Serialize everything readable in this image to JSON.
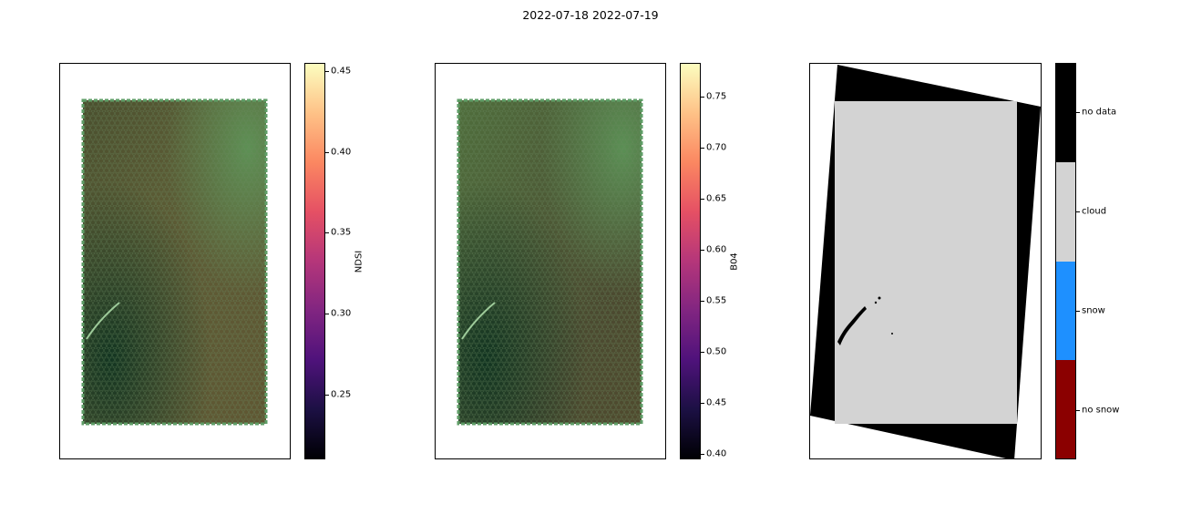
{
  "figure": {
    "suptitle": "2022-07-18 2022-07-19"
  },
  "colors": {
    "magma_top": "#fcfdbf",
    "magma_bottom": "#000004",
    "hex_green": "#5f9e67",
    "hex_dark": "#2f4a33",
    "no_data": "#000000",
    "cloud": "#d3d3d3",
    "snow": "#1e90ff",
    "no_snow": "#8b0000"
  },
  "chart_data": [
    {
      "type": "heatmap",
      "title": "",
      "xlabel": "",
      "ylabel": "",
      "colorbar": {
        "label": "NDSI",
        "colormap": "magma",
        "range": [
          0.21,
          0.455
        ],
        "ticks": [
          "0.25",
          "0.30",
          "0.35",
          "0.40",
          "0.45"
        ],
        "tick_values": [
          0.25,
          0.3,
          0.35,
          0.4,
          0.45
        ]
      }
    },
    {
      "type": "heatmap",
      "title": "",
      "xlabel": "",
      "ylabel": "",
      "colorbar": {
        "label": "B04",
        "colormap": "magma",
        "range": [
          0.395,
          0.783
        ],
        "ticks": [
          "0.40",
          "0.45",
          "0.50",
          "0.55",
          "0.60",
          "0.65",
          "0.70",
          "0.75"
        ],
        "tick_values": [
          0.4,
          0.45,
          0.5,
          0.55,
          0.6,
          0.65,
          0.7,
          0.75
        ]
      }
    },
    {
      "type": "heatmap",
      "title": "",
      "xlabel": "",
      "ylabel": "",
      "colorbar": {
        "label": "",
        "categories": [
          "no data",
          "cloud",
          "snow",
          "no snow"
        ]
      }
    }
  ]
}
